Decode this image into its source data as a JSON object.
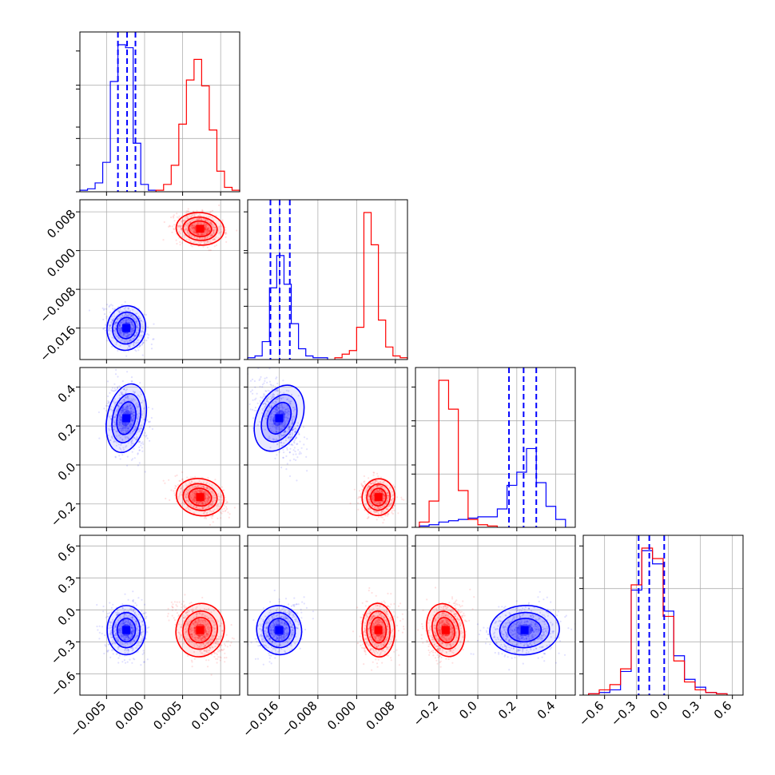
{
  "colors": {
    "blue": "#0000ff",
    "red": "#ff0000",
    "grid": "#b0b0b0"
  },
  "chart_data": {
    "type": "corner",
    "n_params": 4,
    "grid": true,
    "series": [
      {
        "color": "blue",
        "means": [
          -0.0024,
          -0.016,
          0.24,
          -0.19
        ],
        "sds": [
          0.0012,
          0.0022,
          0.085,
          0.11
        ],
        "quantiles_16_50_84": [
          [
            -0.0035,
            -0.0023,
            -0.0012
          ],
          [
            -0.0178,
            -0.0159,
            -0.0138
          ],
          [
            0.16,
            0.235,
            0.3
          ],
          [
            -0.28,
            -0.18,
            -0.04
          ]
        ]
      },
      {
        "color": "red",
        "means": [
          0.0073,
          0.0045,
          -0.165,
          -0.19
        ],
        "sds": [
          0.0015,
          0.0016,
          0.045,
          0.12
        ]
      }
    ],
    "axes": [
      {
        "range": [
          -0.0085,
          0.0125
        ],
        "ticks": [
          -0.005,
          0.0,
          0.005,
          0.01
        ],
        "tick_labels": [
          "−0.005",
          "0.000",
          "0.005",
          "0.010"
        ]
      },
      {
        "range": [
          -0.0225,
          0.0105
        ],
        "ticks": [
          -0.016,
          -0.008,
          0.0,
          0.008
        ],
        "tick_labels": [
          "−0.016",
          "−0.008",
          "0.000",
          "0.008"
        ]
      },
      {
        "range": [
          -0.32,
          0.5
        ],
        "ticks": [
          -0.2,
          0.0,
          0.2,
          0.4
        ],
        "tick_labels": [
          "−0.2",
          "0.0",
          "0.2",
          "0.4"
        ]
      },
      {
        "range": [
          -0.8,
          0.7
        ],
        "ticks": [
          -0.6,
          -0.3,
          0.0,
          0.3,
          0.6
        ],
        "tick_labels": [
          "−0.6",
          "−0.3",
          "0.0",
          "0.3",
          "0.6"
        ]
      }
    ],
    "histograms": [
      {
        "blue": {
          "edges": [
            -0.0085,
            -0.0075,
            -0.0065,
            -0.0055,
            -0.0045,
            -0.0035,
            -0.0025,
            -0.0015,
            -0.0005,
            0.0005,
            0.0015
          ],
          "counts": [
            1,
            2,
            6,
            20,
            75,
            100,
            98,
            33,
            5,
            1
          ]
        },
        "red": {
          "edges": [
            0.0015,
            0.0025,
            0.0035,
            0.0045,
            0.0055,
            0.0065,
            0.0075,
            0.0085,
            0.0095,
            0.0105,
            0.0115,
            0.0125
          ],
          "counts": [
            1,
            5,
            18,
            46,
            76,
            90,
            72,
            42,
            14,
            3,
            1
          ]
        }
      },
      {
        "blue": {
          "edges": [
            -0.0225,
            -0.021,
            -0.0195,
            -0.018,
            -0.0165,
            -0.015,
            -0.0135,
            -0.012,
            -0.0105,
            -0.009,
            -0.0075,
            -0.006
          ],
          "counts": [
            1,
            2,
            10,
            40,
            58,
            42,
            20,
            6,
            2,
            1,
            1
          ]
        },
        "red": {
          "edges": [
            -0.0045,
            -0.003,
            -0.0015,
            0.0,
            0.0015,
            0.003,
            0.0045,
            0.006,
            0.0075,
            0.009,
            0.0105
          ],
          "counts": [
            1,
            3,
            5,
            18,
            82,
            64,
            22,
            7,
            2,
            1
          ]
        }
      },
      {
        "blue": {
          "edges": [
            -0.3,
            -0.25,
            -0.2,
            -0.15,
            -0.1,
            -0.05,
            0.0,
            0.05,
            0.1,
            0.15,
            0.2,
            0.25,
            0.3,
            0.35,
            0.4,
            0.45
          ],
          "counts": [
            0.5,
            1,
            2,
            2.5,
            3,
            3.5,
            4,
            4,
            7,
            16,
            21,
            30,
            17,
            8,
            3
          ]
        },
        "red": {
          "edges": [
            -0.3,
            -0.25,
            -0.2,
            -0.15,
            -0.1,
            -0.05,
            0.0,
            0.05,
            0.1
          ],
          "counts": [
            2,
            10,
            56,
            45,
            14,
            3,
            1,
            0.5
          ]
        }
      },
      {
        "blue": {
          "edges": [
            -0.75,
            -0.65,
            -0.55,
            -0.45,
            -0.35,
            -0.25,
            -0.15,
            -0.05,
            0.05,
            0.15,
            0.25,
            0.35,
            0.45,
            0.55
          ],
          "counts": [
            0.5,
            1,
            2,
            9,
            40,
            55,
            50,
            32,
            15,
            6,
            3,
            1,
            0.5
          ]
        },
        "red": {
          "edges": [
            -0.75,
            -0.65,
            -0.55,
            -0.45,
            -0.35,
            -0.25,
            -0.15,
            -0.05,
            0.05,
            0.15,
            0.25,
            0.35,
            0.45,
            0.55
          ],
          "counts": [
            0.5,
            2,
            4,
            10,
            42,
            56,
            52,
            30,
            13,
            5,
            2,
            1,
            0.5
          ]
        }
      }
    ]
  }
}
